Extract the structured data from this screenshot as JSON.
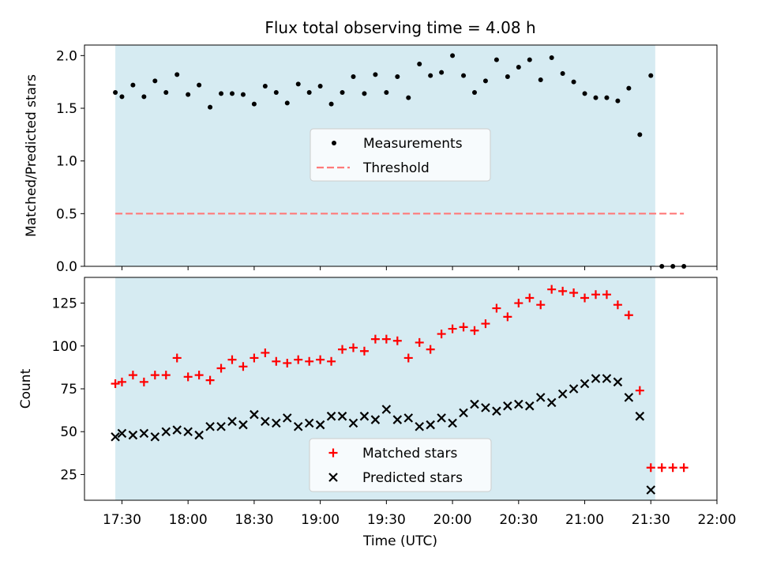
{
  "figure": {
    "title": "Flux total observing time = 4.08 h",
    "xlabel": "Time (UTC)",
    "x_tick_labels": [
      "17:30",
      "18:00",
      "18:30",
      "19:00",
      "19:30",
      "20:00",
      "20:30",
      "21:00",
      "21:30",
      "22:00"
    ]
  },
  "chart_data": [
    {
      "type": "scatter",
      "panel": "top",
      "ylabel": "Matched/Predicted stars",
      "ylim": [
        0,
        2.1
      ],
      "y_ticks": [
        0.0,
        0.5,
        1.0,
        1.5,
        2.0
      ],
      "y_tick_labels": [
        "0.0",
        "0.5",
        "1.0",
        "1.5",
        "2.0"
      ],
      "xlim": [
        "17:13",
        "22:00"
      ],
      "shaded_interval": [
        "17:27",
        "21:32"
      ],
      "legend_position": "center",
      "series": [
        {
          "name": "Measurements",
          "marker": "dot",
          "color": "#000000",
          "x": [
            "17:27",
            "17:30",
            "17:35",
            "17:40",
            "17:45",
            "17:50",
            "17:55",
            "18:00",
            "18:05",
            "18:10",
            "18:15",
            "18:20",
            "18:25",
            "18:30",
            "18:35",
            "18:40",
            "18:45",
            "18:50",
            "18:55",
            "19:00",
            "19:05",
            "19:10",
            "19:15",
            "19:20",
            "19:25",
            "19:30",
            "19:35",
            "19:40",
            "19:45",
            "19:50",
            "19:55",
            "20:00",
            "20:05",
            "20:10",
            "20:15",
            "20:20",
            "20:25",
            "20:30",
            "20:35",
            "20:40",
            "20:45",
            "20:50",
            "20:55",
            "21:00",
            "21:05",
            "21:10",
            "21:15",
            "21:20",
            "21:25",
            "21:30",
            "21:35",
            "21:40",
            "21:45"
          ],
          "y": [
            1.65,
            1.61,
            1.72,
            1.61,
            1.76,
            1.65,
            1.82,
            1.63,
            1.72,
            1.51,
            1.64,
            1.64,
            1.63,
            1.54,
            1.71,
            1.65,
            1.55,
            1.73,
            1.65,
            1.71,
            1.54,
            1.65,
            1.8,
            1.64,
            1.82,
            1.65,
            1.8,
            1.6,
            1.92,
            1.81,
            1.84,
            2.0,
            1.81,
            1.65,
            1.76,
            1.96,
            1.8,
            1.89,
            1.96,
            1.77,
            1.98,
            1.83,
            1.75,
            1.64,
            1.6,
            1.6,
            1.57,
            1.69,
            1.25,
            1.81,
            0.0,
            0.0,
            0.0
          ]
        },
        {
          "name": "Threshold",
          "line_style": "dashed",
          "color": "#ff7a7a",
          "x": [
            "17:27",
            "21:45"
          ],
          "y": [
            0.5,
            0.5
          ]
        }
      ]
    },
    {
      "type": "scatter",
      "panel": "bottom",
      "ylabel": "Count",
      "ylim": [
        10,
        140
      ],
      "y_ticks": [
        25,
        50,
        75,
        100,
        125
      ],
      "y_tick_labels": [
        "25",
        "50",
        "75",
        "100",
        "125"
      ],
      "xlim": [
        "17:13",
        "22:00"
      ],
      "shaded_interval": [
        "17:27",
        "21:32"
      ],
      "legend_position": "lower center",
      "series": [
        {
          "name": "Matched stars",
          "marker": "plus",
          "color": "#ff0000",
          "x": [
            "17:27",
            "17:30",
            "17:35",
            "17:40",
            "17:45",
            "17:50",
            "17:55",
            "18:00",
            "18:05",
            "18:10",
            "18:15",
            "18:20",
            "18:25",
            "18:30",
            "18:35",
            "18:40",
            "18:45",
            "18:50",
            "18:55",
            "19:00",
            "19:05",
            "19:10",
            "19:15",
            "19:20",
            "19:25",
            "19:30",
            "19:35",
            "19:40",
            "19:45",
            "19:50",
            "19:55",
            "20:00",
            "20:05",
            "20:10",
            "20:15",
            "20:20",
            "20:25",
            "20:30",
            "20:35",
            "20:40",
            "20:45",
            "20:50",
            "20:55",
            "21:00",
            "21:05",
            "21:10",
            "21:15",
            "21:20",
            "21:25",
            "21:30",
            "21:35",
            "21:40",
            "21:45"
          ],
          "y": [
            78,
            79,
            83,
            79,
            83,
            83,
            93,
            82,
            83,
            80,
            87,
            92,
            88,
            93,
            96,
            91,
            90,
            92,
            91,
            92,
            91,
            98,
            99,
            97,
            104,
            104,
            103,
            93,
            102,
            98,
            107,
            110,
            111,
            109,
            113,
            122,
            117,
            125,
            128,
            124,
            133,
            132,
            131,
            128,
            130,
            130,
            124,
            118,
            74,
            29,
            29,
            29,
            29
          ]
        },
        {
          "name": "Predicted stars",
          "marker": "x",
          "color": "#000000",
          "x": [
            "17:27",
            "17:30",
            "17:35",
            "17:40",
            "17:45",
            "17:50",
            "17:55",
            "18:00",
            "18:05",
            "18:10",
            "18:15",
            "18:20",
            "18:25",
            "18:30",
            "18:35",
            "18:40",
            "18:45",
            "18:50",
            "18:55",
            "19:00",
            "19:05",
            "19:10",
            "19:15",
            "19:20",
            "19:25",
            "19:30",
            "19:35",
            "19:40",
            "19:45",
            "19:50",
            "19:55",
            "20:00",
            "20:05",
            "20:10",
            "20:15",
            "20:20",
            "20:25",
            "20:30",
            "20:35",
            "20:40",
            "20:45",
            "20:50",
            "20:55",
            "21:00",
            "21:05",
            "21:10",
            "21:15",
            "21:20",
            "21:25",
            "21:30"
          ],
          "y": [
            47,
            49,
            48,
            49,
            47,
            50,
            51,
            50,
            48,
            53,
            53,
            56,
            54,
            60,
            56,
            55,
            58,
            53,
            55,
            54,
            59,
            59,
            55,
            59,
            57,
            63,
            57,
            58,
            53,
            54,
            58,
            55,
            61,
            66,
            64,
            62,
            65,
            66,
            65,
            70,
            67,
            72,
            75,
            78,
            81,
            81,
            79,
            70,
            59,
            16
          ]
        }
      ]
    }
  ]
}
